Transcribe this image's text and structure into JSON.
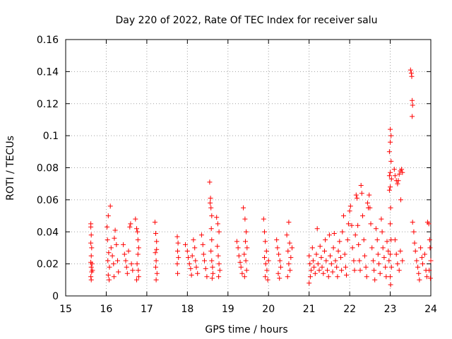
{
  "chart_data": {
    "type": "scatter",
    "title": "Day 220 of 2022, Rate Of TEC Index for receiver salu",
    "xlabel": "GPS time / hours",
    "ylabel": "ROTI / TECUs",
    "xlim": [
      15,
      24
    ],
    "ylim": [
      0,
      0.16
    ],
    "xticks": [
      "15",
      "16",
      "17",
      "18",
      "19",
      "20",
      "21",
      "22",
      "23",
      "24"
    ],
    "yticks": [
      "0",
      "0.02",
      "0.04",
      "0.06",
      "0.08",
      "0.1",
      "0.12",
      "0.14",
      "0.16"
    ],
    "grid": true,
    "marker": "+",
    "color": "#ff0000",
    "series": [
      {
        "name": "ROTI",
        "points": [
          [
            15.62,
            0.045
          ],
          [
            15.62,
            0.043
          ],
          [
            15.63,
            0.038
          ],
          [
            15.62,
            0.033
          ],
          [
            15.64,
            0.03
          ],
          [
            15.63,
            0.025
          ],
          [
            15.62,
            0.021
          ],
          [
            15.63,
            0.018
          ],
          [
            15.64,
            0.015
          ],
          [
            15.62,
            0.012
          ],
          [
            15.63,
            0.01
          ],
          [
            15.65,
            0.02
          ],
          [
            15.66,
            0.016
          ],
          [
            16.02,
            0.043
          ],
          [
            16.05,
            0.05
          ],
          [
            16.03,
            0.035
          ],
          [
            16.06,
            0.027
          ],
          [
            16.04,
            0.022
          ],
          [
            16.08,
            0.018
          ],
          [
            16.05,
            0.013
          ],
          [
            16.07,
            0.01
          ],
          [
            16.1,
            0.056
          ],
          [
            16.12,
            0.03
          ],
          [
            16.15,
            0.025
          ],
          [
            16.18,
            0.02
          ],
          [
            16.2,
            0.036
          ],
          [
            16.22,
            0.041
          ],
          [
            16.25,
            0.032
          ],
          [
            16.28,
            0.022
          ],
          [
            16.3,
            0.015
          ],
          [
            16.19,
            0.012
          ],
          [
            16.42,
            0.032
          ],
          [
            16.45,
            0.026
          ],
          [
            16.48,
            0.022
          ],
          [
            16.5,
            0.018
          ],
          [
            16.52,
            0.014
          ],
          [
            16.55,
            0.028
          ],
          [
            16.58,
            0.043
          ],
          [
            16.6,
            0.045
          ],
          [
            16.62,
            0.02
          ],
          [
            16.65,
            0.016
          ],
          [
            16.72,
            0.048
          ],
          [
            16.75,
            0.042
          ],
          [
            16.77,
            0.04
          ],
          [
            16.78,
            0.035
          ],
          [
            16.8,
            0.03
          ],
          [
            16.78,
            0.026
          ],
          [
            16.76,
            0.02
          ],
          [
            16.79,
            0.016
          ],
          [
            16.8,
            0.012
          ],
          [
            16.75,
            0.01
          ],
          [
            17.2,
            0.046
          ],
          [
            17.22,
            0.039
          ],
          [
            17.24,
            0.034
          ],
          [
            17.21,
            0.027
          ],
          [
            17.23,
            0.022
          ],
          [
            17.22,
            0.018
          ],
          [
            17.25,
            0.014
          ],
          [
            17.23,
            0.01
          ],
          [
            17.24,
            0.029
          ],
          [
            17.75,
            0.037
          ],
          [
            17.77,
            0.033
          ],
          [
            17.76,
            0.028
          ],
          [
            17.78,
            0.024
          ],
          [
            17.75,
            0.02
          ],
          [
            17.76,
            0.014
          ],
          [
            17.95,
            0.032
          ],
          [
            18.0,
            0.028
          ],
          [
            18.02,
            0.024
          ],
          [
            18.05,
            0.02
          ],
          [
            18.08,
            0.017
          ],
          [
            18.1,
            0.013
          ],
          [
            18.12,
            0.025
          ],
          [
            18.15,
            0.035
          ],
          [
            18.18,
            0.03
          ],
          [
            18.2,
            0.022
          ],
          [
            18.22,
            0.018
          ],
          [
            18.25,
            0.014
          ],
          [
            18.35,
            0.038
          ],
          [
            18.38,
            0.032
          ],
          [
            18.4,
            0.026
          ],
          [
            18.42,
            0.022
          ],
          [
            18.45,
            0.017
          ],
          [
            18.48,
            0.012
          ],
          [
            18.55,
            0.071
          ],
          [
            18.57,
            0.061
          ],
          [
            18.56,
            0.058
          ],
          [
            18.58,
            0.055
          ],
          [
            18.6,
            0.05
          ],
          [
            18.59,
            0.042
          ],
          [
            18.6,
            0.035
          ],
          [
            18.58,
            0.028
          ],
          [
            18.6,
            0.022
          ],
          [
            18.62,
            0.018
          ],
          [
            18.63,
            0.014
          ],
          [
            18.61,
            0.011
          ],
          [
            18.72,
            0.049
          ],
          [
            18.75,
            0.045
          ],
          [
            18.78,
            0.04
          ],
          [
            18.74,
            0.031
          ],
          [
            18.76,
            0.025
          ],
          [
            18.78,
            0.02
          ],
          [
            18.8,
            0.016
          ],
          [
            18.77,
            0.012
          ],
          [
            19.22,
            0.034
          ],
          [
            19.25,
            0.03
          ],
          [
            19.27,
            0.025
          ],
          [
            19.3,
            0.021
          ],
          [
            19.32,
            0.018
          ],
          [
            19.35,
            0.014
          ],
          [
            19.38,
            0.055
          ],
          [
            19.42,
            0.048
          ],
          [
            19.45,
            0.04
          ],
          [
            19.43,
            0.034
          ],
          [
            19.47,
            0.03
          ],
          [
            19.4,
            0.026
          ],
          [
            19.44,
            0.022
          ],
          [
            19.46,
            0.016
          ],
          [
            19.41,
            0.012
          ],
          [
            19.88,
            0.048
          ],
          [
            19.9,
            0.04
          ],
          [
            19.92,
            0.034
          ],
          [
            19.95,
            0.028
          ],
          [
            19.9,
            0.024
          ],
          [
            19.93,
            0.02
          ],
          [
            19.96,
            0.016
          ],
          [
            19.92,
            0.012
          ],
          [
            19.98,
            0.01
          ],
          [
            20.0,
            0.022
          ],
          [
            20.2,
            0.035
          ],
          [
            20.22,
            0.03
          ],
          [
            20.25,
            0.026
          ],
          [
            20.28,
            0.022
          ],
          [
            20.3,
            0.018
          ],
          [
            20.24,
            0.014
          ],
          [
            20.27,
            0.011
          ],
          [
            20.45,
            0.038
          ],
          [
            20.5,
            0.046
          ],
          [
            20.52,
            0.033
          ],
          [
            20.48,
            0.028
          ],
          [
            20.55,
            0.024
          ],
          [
            20.5,
            0.02
          ],
          [
            20.53,
            0.016
          ],
          [
            20.47,
            0.012
          ],
          [
            20.58,
            0.03
          ],
          [
            21.0,
            0.025
          ],
          [
            21.02,
            0.02
          ],
          [
            21.05,
            0.016
          ],
          [
            21.03,
            0.012
          ],
          [
            21.0,
            0.008
          ],
          [
            21.08,
            0.03
          ],
          [
            21.1,
            0.022
          ],
          [
            21.12,
            0.018
          ],
          [
            21.15,
            0.014
          ],
          [
            21.18,
            0.026
          ],
          [
            21.2,
            0.042
          ],
          [
            21.22,
            0.02
          ],
          [
            21.25,
            0.016
          ],
          [
            21.27,
            0.031
          ],
          [
            21.3,
            0.024
          ],
          [
            21.32,
            0.018
          ],
          [
            21.35,
            0.014
          ],
          [
            21.38,
            0.028
          ],
          [
            21.4,
            0.035
          ],
          [
            21.42,
            0.022
          ],
          [
            21.45,
            0.016
          ],
          [
            21.48,
            0.012
          ],
          [
            21.5,
            0.038
          ],
          [
            21.52,
            0.025
          ],
          [
            21.55,
            0.02
          ],
          [
            21.58,
            0.015
          ],
          [
            21.6,
            0.03
          ],
          [
            21.62,
            0.039
          ],
          [
            21.65,
            0.022
          ],
          [
            21.68,
            0.018
          ],
          [
            21.7,
            0.012
          ],
          [
            21.72,
            0.028
          ],
          [
            21.75,
            0.034
          ],
          [
            21.78,
            0.024
          ],
          [
            21.8,
            0.016
          ],
          [
            21.82,
            0.04
          ],
          [
            21.85,
            0.05
          ],
          [
            21.88,
            0.026
          ],
          [
            21.9,
            0.018
          ],
          [
            21.92,
            0.013
          ],
          [
            21.95,
            0.035
          ],
          [
            21.97,
            0.045
          ],
          [
            22.0,
            0.053
          ],
          [
            22.02,
            0.056
          ],
          [
            22.05,
            0.044
          ],
          [
            22.07,
            0.03
          ],
          [
            22.1,
            0.022
          ],
          [
            22.12,
            0.016
          ],
          [
            22.14,
            0.038
          ],
          [
            22.16,
            0.063
          ],
          [
            22.18,
            0.061
          ],
          [
            22.2,
            0.044
          ],
          [
            22.22,
            0.032
          ],
          [
            22.24,
            0.022
          ],
          [
            22.26,
            0.016
          ],
          [
            22.28,
            0.069
          ],
          [
            22.3,
            0.064
          ],
          [
            22.32,
            0.05
          ],
          [
            22.35,
            0.035
          ],
          [
            22.37,
            0.025
          ],
          [
            22.4,
            0.018
          ],
          [
            22.42,
            0.012
          ],
          [
            22.44,
            0.058
          ],
          [
            22.46,
            0.055
          ],
          [
            22.48,
            0.063
          ],
          [
            22.5,
            0.055
          ],
          [
            22.52,
            0.045
          ],
          [
            22.55,
            0.03
          ],
          [
            22.58,
            0.022
          ],
          [
            22.6,
            0.016
          ],
          [
            22.62,
            0.01
          ],
          [
            22.65,
            0.042
          ],
          [
            22.68,
            0.035
          ],
          [
            22.7,
            0.026
          ],
          [
            22.72,
            0.02
          ],
          [
            22.75,
            0.014
          ],
          [
            22.78,
            0.048
          ],
          [
            22.8,
            0.04
          ],
          [
            22.82,
            0.03
          ],
          [
            22.85,
            0.024
          ],
          [
            22.88,
            0.018
          ],
          [
            22.9,
            0.012
          ],
          [
            22.92,
            0.034
          ],
          [
            22.95,
            0.028
          ],
          [
            22.97,
            0.022
          ],
          [
            23.0,
            0.104
          ],
          [
            23.02,
            0.1
          ],
          [
            23.0,
            0.096
          ],
          [
            22.98,
            0.09
          ],
          [
            23.02,
            0.084
          ],
          [
            23.0,
            0.077
          ],
          [
            22.98,
            0.075
          ],
          [
            23.03,
            0.073
          ],
          [
            23.0,
            0.068
          ],
          [
            22.98,
            0.066
          ],
          [
            23.01,
            0.055
          ],
          [
            23.0,
            0.045
          ],
          [
            23.02,
            0.035
          ],
          [
            23.0,
            0.026
          ],
          [
            23.03,
            0.018
          ],
          [
            23.0,
            0.012
          ],
          [
            23.01,
            0.007
          ],
          [
            23.1,
            0.079
          ],
          [
            23.12,
            0.075
          ],
          [
            23.15,
            0.072
          ],
          [
            23.18,
            0.07
          ],
          [
            23.2,
            0.072
          ],
          [
            23.22,
            0.076
          ],
          [
            23.25,
            0.078
          ],
          [
            23.28,
            0.079
          ],
          [
            23.3,
            0.077
          ],
          [
            23.26,
            0.06
          ],
          [
            23.12,
            0.035
          ],
          [
            23.15,
            0.026
          ],
          [
            23.18,
            0.02
          ],
          [
            23.22,
            0.016
          ],
          [
            23.25,
            0.028
          ],
          [
            23.3,
            0.022
          ],
          [
            23.5,
            0.141
          ],
          [
            23.52,
            0.139
          ],
          [
            23.53,
            0.137
          ],
          [
            23.54,
            0.122
          ],
          [
            23.55,
            0.119
          ],
          [
            23.54,
            0.112
          ],
          [
            23.55,
            0.046
          ],
          [
            23.58,
            0.04
          ],
          [
            23.6,
            0.033
          ],
          [
            23.62,
            0.028
          ],
          [
            23.65,
            0.022
          ],
          [
            23.68,
            0.018
          ],
          [
            23.7,
            0.014
          ],
          [
            23.72,
            0.01
          ],
          [
            23.75,
            0.03
          ],
          [
            23.78,
            0.024
          ],
          [
            23.8,
            0.02
          ],
          [
            23.85,
            0.026
          ],
          [
            23.88,
            0.016
          ],
          [
            23.9,
            0.012
          ],
          [
            23.92,
            0.046
          ],
          [
            23.95,
            0.045
          ],
          [
            23.97,
            0.035
          ],
          [
            23.98,
            0.03
          ],
          [
            24.0,
            0.022
          ],
          [
            23.96,
            0.016
          ],
          [
            23.99,
            0.011
          ]
        ]
      }
    ]
  }
}
